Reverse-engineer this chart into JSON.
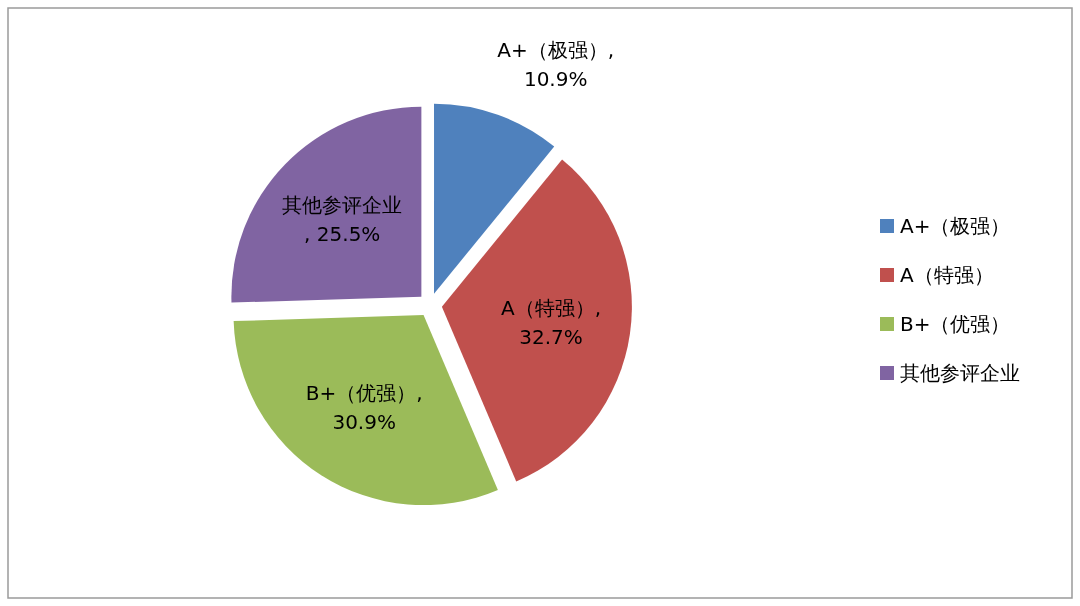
{
  "chart_data": {
    "type": "pie",
    "categories": [
      "A+（极强）",
      "A（特强）",
      "B+（优强）",
      "其他参评企业"
    ],
    "values": [
      10.9,
      32.7,
      30.9,
      25.5
    ],
    "colors": [
      "#4f81bd",
      "#c0504d",
      "#9bbb59",
      "#8064a2"
    ],
    "value_labels": [
      "A+（极强）, 10.9%",
      "A（特强）, 32.7%",
      "B+（优强）, 30.9%",
      "其他参评企业, 25.5%"
    ],
    "legend": "right"
  }
}
